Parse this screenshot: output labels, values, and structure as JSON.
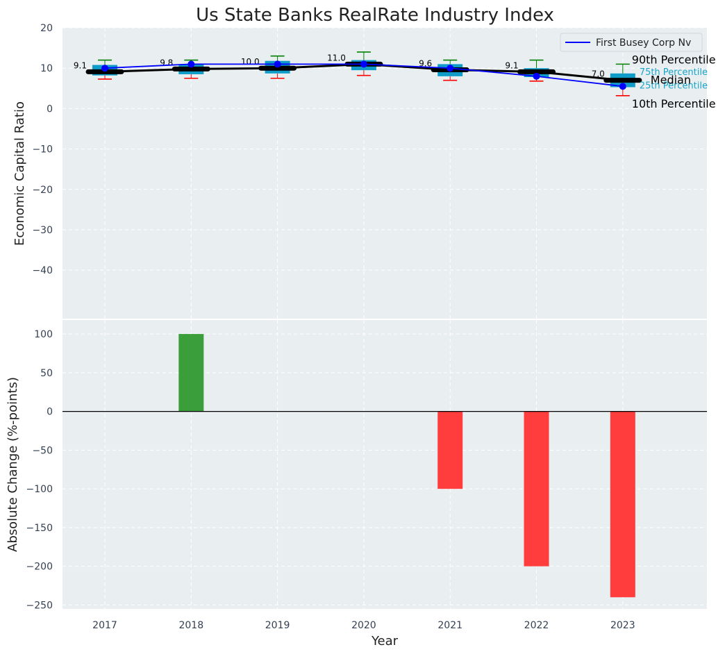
{
  "chart_data": [
    {
      "type": "box",
      "title": "Us State Banks RealRate Industry Index",
      "ylabel": "Economic Capital Ratio",
      "ylim": [
        -52,
        20
      ],
      "yticks": [
        20,
        10,
        0,
        -10,
        -20,
        -30,
        -40
      ],
      "ytick_labels": [
        "20",
        "10",
        "0",
        "−10",
        "−20",
        "−30",
        "−40"
      ],
      "categories": [
        "2017",
        "2018",
        "2019",
        "2020",
        "2021",
        "2022",
        "2023"
      ],
      "percentiles": {
        "p10": [
          7.3,
          7.5,
          7.5,
          8.2,
          7.0,
          6.8,
          3.2
        ],
        "p25": [
          8.2,
          8.5,
          8.7,
          9.5,
          8.0,
          7.8,
          5.3
        ],
        "median": [
          9.1,
          9.8,
          10.0,
          11.0,
          9.6,
          9.1,
          7.0
        ],
        "p75": [
          10.8,
          11.0,
          11.8,
          12.0,
          11.0,
          10.0,
          8.7
        ],
        "p90": [
          12.0,
          12.0,
          13.0,
          14.0,
          12.0,
          12.0,
          11.0
        ]
      },
      "median_labels": [
        "9.1",
        "9.8",
        "10.0",
        "11.0",
        "9.6",
        "9.1",
        "7.0"
      ],
      "series": [
        {
          "name": "First Busey Corp Nv",
          "values": [
            10.0,
            11.0,
            11.0,
            11.0,
            10.0,
            8.0,
            5.5
          ]
        }
      ],
      "legend": "top-right",
      "annotations": {
        "p90": "90th Percentile",
        "p75": "75th Percentile",
        "median": "Median",
        "p25": "25th Percentile",
        "p10": "10th Percentile"
      }
    },
    {
      "type": "bar",
      "ylabel": "Absolute Change (%-points)",
      "xlabel": "Year",
      "ylim": [
        -255,
        118
      ],
      "yticks": [
        100,
        50,
        0,
        -50,
        -100,
        -150,
        -200,
        -250
      ],
      "ytick_labels": [
        "100",
        "50",
        "0",
        "−50",
        "−100",
        "−150",
        "−200",
        "−250"
      ],
      "categories": [
        "2017",
        "2018",
        "2019",
        "2020",
        "2021",
        "2022",
        "2023"
      ],
      "values": [
        0,
        100,
        0,
        0,
        -100,
        -200,
        -240
      ]
    }
  ],
  "colors": {
    "plot_bg": "#e9eef0",
    "box": "#0f9cc9",
    "median": "#000000",
    "company": "#0000ff",
    "whisker_top": "#008000",
    "whisker_bottom": "#ff0000",
    "positive": "#3a9e3a",
    "negative": "#ff3d3d",
    "percentile_text": "#1aa6c8"
  }
}
